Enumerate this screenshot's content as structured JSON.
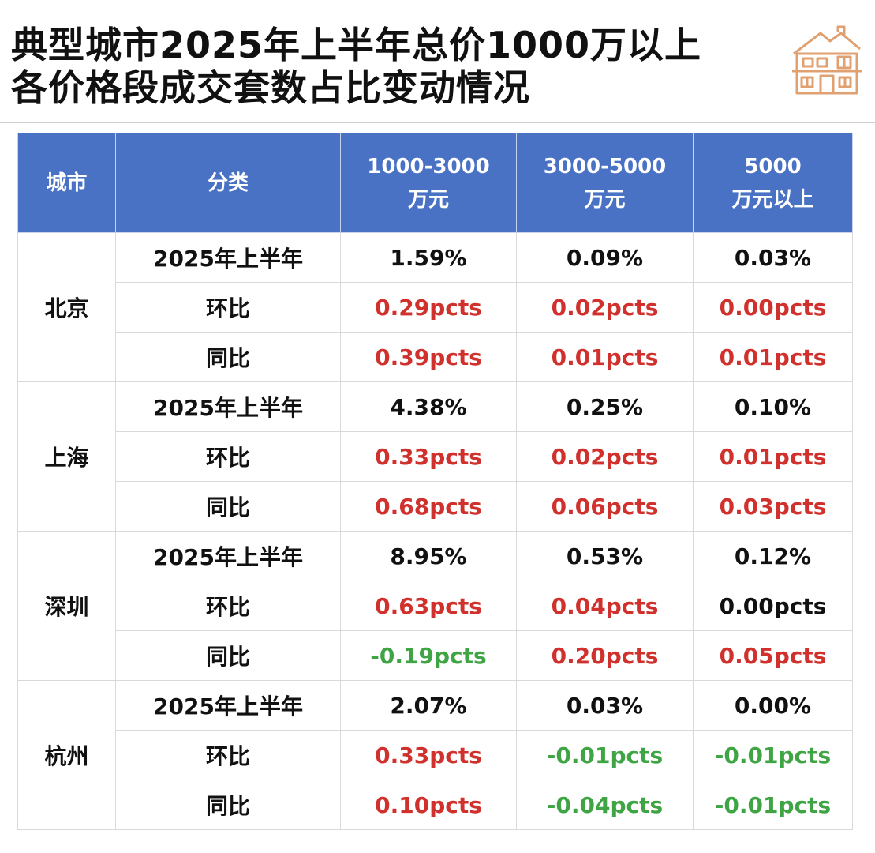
{
  "title": {
    "line1": "典型城市2025年上半年总价1000万以上",
    "line2": "各价格段成交套数占比变动情况"
  },
  "logo_icon": "house-icon",
  "colors": {
    "header_bg": "#4a72c4",
    "positive": "#d0312d",
    "negative": "#3fa443",
    "logo": "#e0a070"
  },
  "table": {
    "headers": {
      "city": "城市",
      "category": "分类",
      "col1": {
        "line1": "1000-3000",
        "line2": "万元"
      },
      "col2": {
        "line1": "3000-5000",
        "line2": "万元"
      },
      "col3": {
        "line1": "5000",
        "line2": "万元以上"
      }
    },
    "cities": [
      {
        "name": "北京",
        "rows": [
          {
            "label": "2025年上半年",
            "values": [
              "1.59%",
              "0.09%",
              "0.03%"
            ],
            "tones": [
              "neu",
              "neu",
              "neu"
            ]
          },
          {
            "label": "环比",
            "values": [
              "0.29pcts",
              "0.02pcts",
              "0.00pcts"
            ],
            "tones": [
              "pos",
              "pos",
              "pos"
            ]
          },
          {
            "label": "同比",
            "values": [
              "0.39pcts",
              "0.01pcts",
              "0.01pcts"
            ],
            "tones": [
              "pos",
              "pos",
              "pos"
            ]
          }
        ]
      },
      {
        "name": "上海",
        "rows": [
          {
            "label": "2025年上半年",
            "values": [
              "4.38%",
              "0.25%",
              "0.10%"
            ],
            "tones": [
              "neu",
              "neu",
              "neu"
            ]
          },
          {
            "label": "环比",
            "values": [
              "0.33pcts",
              "0.02pcts",
              "0.01pcts"
            ],
            "tones": [
              "pos",
              "pos",
              "pos"
            ]
          },
          {
            "label": "同比",
            "values": [
              "0.68pcts",
              "0.06pcts",
              "0.03pcts"
            ],
            "tones": [
              "pos",
              "pos",
              "pos"
            ]
          }
        ]
      },
      {
        "name": "深圳",
        "rows": [
          {
            "label": "2025年上半年",
            "values": [
              "8.95%",
              "0.53%",
              "0.12%"
            ],
            "tones": [
              "neu",
              "neu",
              "neu"
            ]
          },
          {
            "label": "环比",
            "values": [
              "0.63pcts",
              "0.04pcts",
              "0.00pcts"
            ],
            "tones": [
              "pos",
              "pos",
              "neu"
            ]
          },
          {
            "label": "同比",
            "values": [
              "-0.19pcts",
              "0.20pcts",
              "0.05pcts"
            ],
            "tones": [
              "neg",
              "pos",
              "pos"
            ]
          }
        ]
      },
      {
        "name": "杭州",
        "rows": [
          {
            "label": "2025年上半年",
            "values": [
              "2.07%",
              "0.03%",
              "0.00%"
            ],
            "tones": [
              "neu",
              "neu",
              "neu"
            ]
          },
          {
            "label": "环比",
            "values": [
              "0.33pcts",
              "-0.01pcts",
              "-0.01pcts"
            ],
            "tones": [
              "pos",
              "neg",
              "neg"
            ]
          },
          {
            "label": "同比",
            "values": [
              "0.10pcts",
              "-0.04pcts",
              "-0.01pcts"
            ],
            "tones": [
              "pos",
              "neg",
              "neg"
            ]
          }
        ]
      }
    ]
  }
}
